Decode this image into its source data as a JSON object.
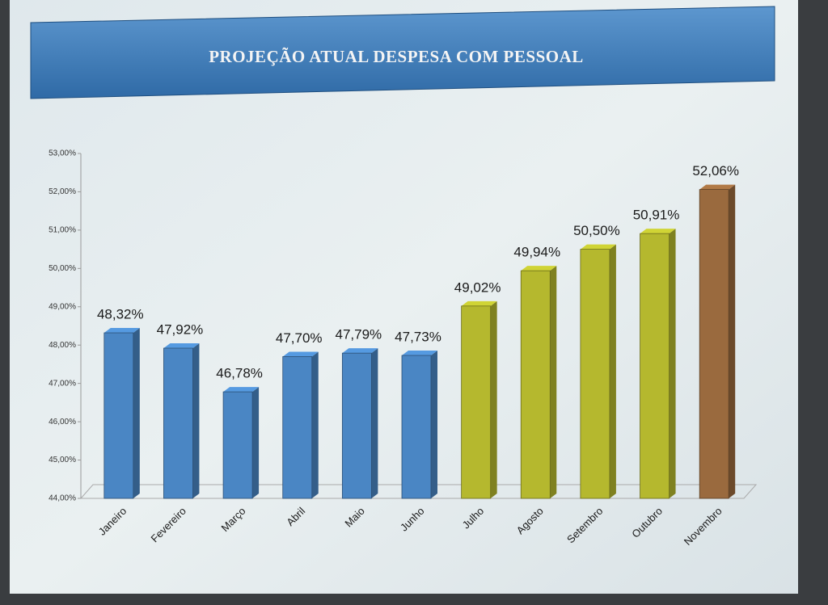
{
  "chart_data": {
    "type": "bar",
    "title": "PROJEÇÃO ATUAL DESPESA COM PESSOAL",
    "categories": [
      "Janeiro",
      "Fevereiro",
      "Março",
      "Abril",
      "Maio",
      "Junho",
      "Julho",
      "Agosto",
      "Setembro",
      "Outubro",
      "Novembro"
    ],
    "values": [
      48.32,
      47.92,
      46.78,
      47.7,
      47.79,
      47.73,
      49.02,
      49.94,
      50.5,
      50.91,
      52.06
    ],
    "value_labels": [
      "48,32%",
      "47,92%",
      "46,78%",
      "47,70%",
      "47,79%",
      "47,73%",
      "49,02%",
      "49,94%",
      "50,50%",
      "50,91%",
      "52,06%"
    ],
    "colors": [
      "#4a86c4",
      "#4a86c4",
      "#4a86c4",
      "#4a86c4",
      "#4a86c4",
      "#4a86c4",
      "#b5b82e",
      "#b5b82e",
      "#b5b82e",
      "#b5b82e",
      "#9a6a3e"
    ],
    "ylim": [
      44,
      53
    ],
    "yticks": [
      {
        "value": 44,
        "label": "44,00%"
      },
      {
        "value": 45,
        "label": "45,00%"
      },
      {
        "value": 46,
        "label": "46,00%"
      },
      {
        "value": 47,
        "label": "47,00%"
      },
      {
        "value": 48,
        "label": "48,00%"
      },
      {
        "value": 49,
        "label": "49,00%"
      },
      {
        "value": 50,
        "label": "50,00%"
      },
      {
        "value": 51,
        "label": "51,00%"
      },
      {
        "value": 52,
        "label": "52,00%"
      },
      {
        "value": 53,
        "label": "53,00%"
      }
    ]
  }
}
